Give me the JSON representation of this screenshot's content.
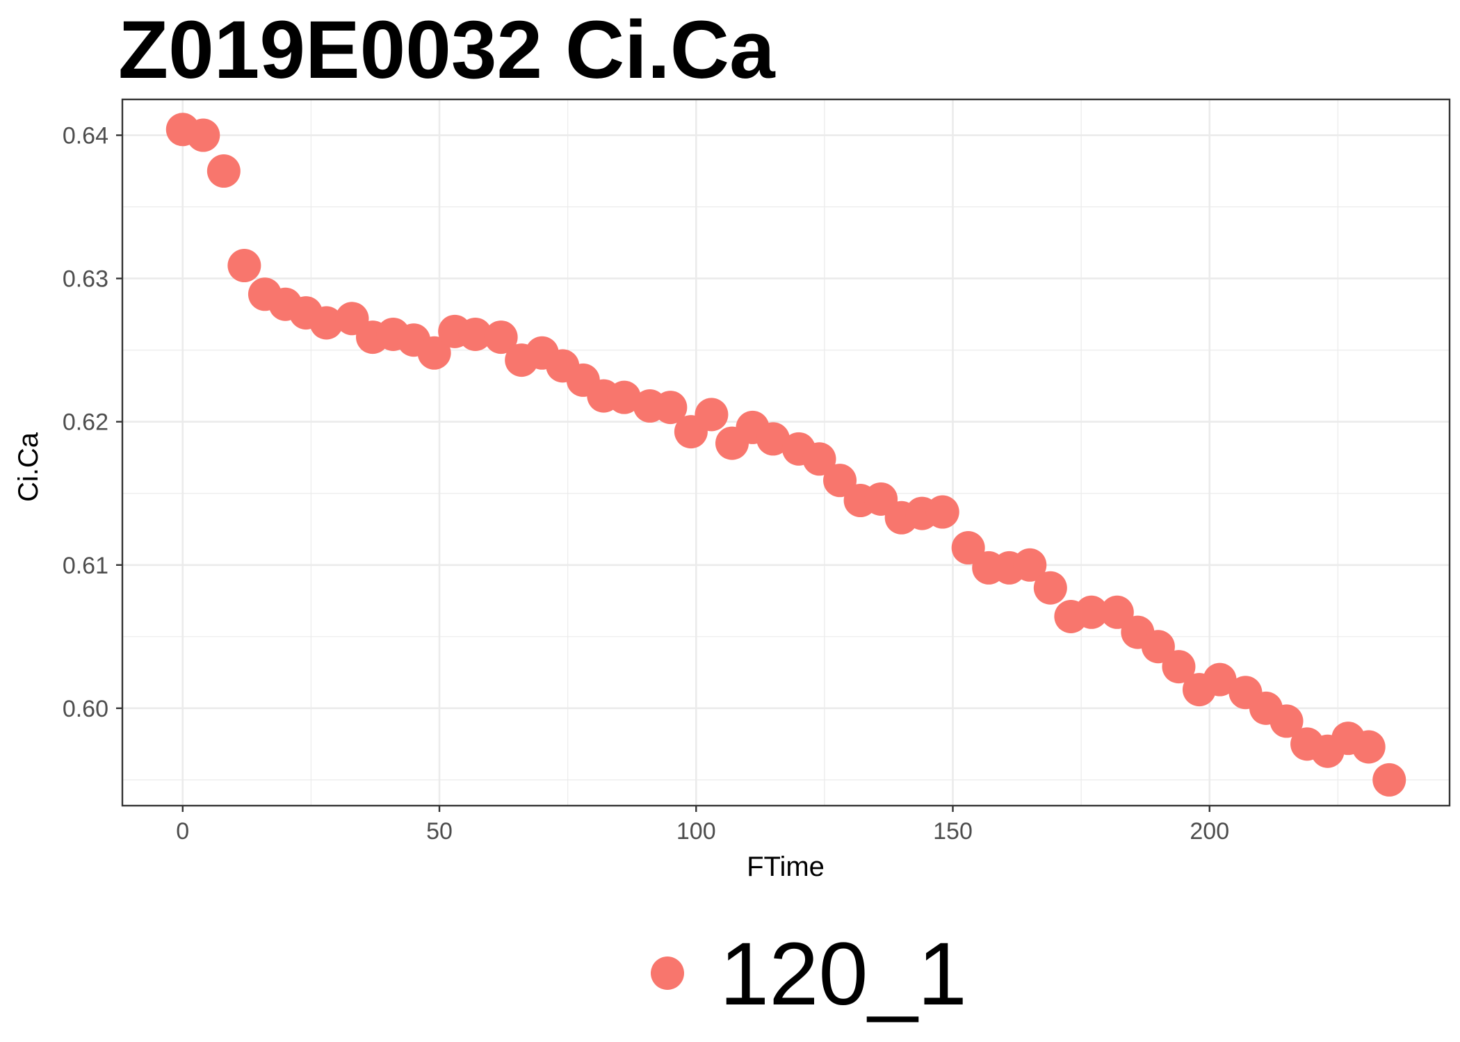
{
  "chart_data": {
    "type": "scatter",
    "title": "Z019E0032 Ci.Ca",
    "xlabel": "FTime",
    "ylabel": "Ci.Ca",
    "xlim": [
      -11.75,
      246.75
    ],
    "ylim": [
      0.5932,
      0.6425
    ],
    "x_ticks": [
      0,
      50,
      100,
      150,
      200
    ],
    "x_tick_labels": [
      "0",
      "50",
      "100",
      "150",
      "200"
    ],
    "y_ticks": [
      0.6,
      0.61,
      0.62,
      0.63,
      0.64
    ],
    "y_tick_labels": [
      "0.60",
      "0.61",
      "0.62",
      "0.63",
      "0.64"
    ],
    "grid": true,
    "legend_position": "bottom",
    "colors": {
      "series": "#F8766D",
      "grid": "#ebebeb",
      "border": "#333333"
    },
    "series": [
      {
        "name": "120_1",
        "x": [
          0,
          4,
          8,
          12,
          16,
          20,
          24,
          28,
          33,
          37,
          41,
          45,
          49,
          53,
          57,
          62,
          66,
          70,
          74,
          78,
          82,
          86,
          91,
          95,
          99,
          103,
          107,
          111,
          115,
          120,
          124,
          128,
          132,
          136,
          140,
          144,
          148,
          153,
          157,
          161,
          165,
          169,
          173,
          177,
          182,
          186,
          190,
          194,
          198,
          202,
          207,
          211,
          215,
          219,
          223,
          227,
          231,
          235
        ],
        "y": [
          0.6404,
          0.64,
          0.6375,
          0.6309,
          0.6289,
          0.6282,
          0.6276,
          0.6269,
          0.6272,
          0.6259,
          0.6261,
          0.6257,
          0.6248,
          0.6263,
          0.6261,
          0.6259,
          0.6243,
          0.6248,
          0.6239,
          0.6229,
          0.6218,
          0.6217,
          0.6211,
          0.621,
          0.6193,
          0.6205,
          0.6185,
          0.6196,
          0.6188,
          0.6181,
          0.6174,
          0.6159,
          0.6145,
          0.6146,
          0.6133,
          0.6136,
          0.6137,
          0.6112,
          0.6098,
          0.6098,
          0.61,
          0.6084,
          0.6064,
          0.6067,
          0.6067,
          0.6053,
          0.6043,
          0.6029,
          0.6013,
          0.602,
          0.6011,
          0.6,
          0.5991,
          0.5975,
          0.597,
          0.5979,
          0.5973,
          0.595
        ]
      }
    ]
  }
}
